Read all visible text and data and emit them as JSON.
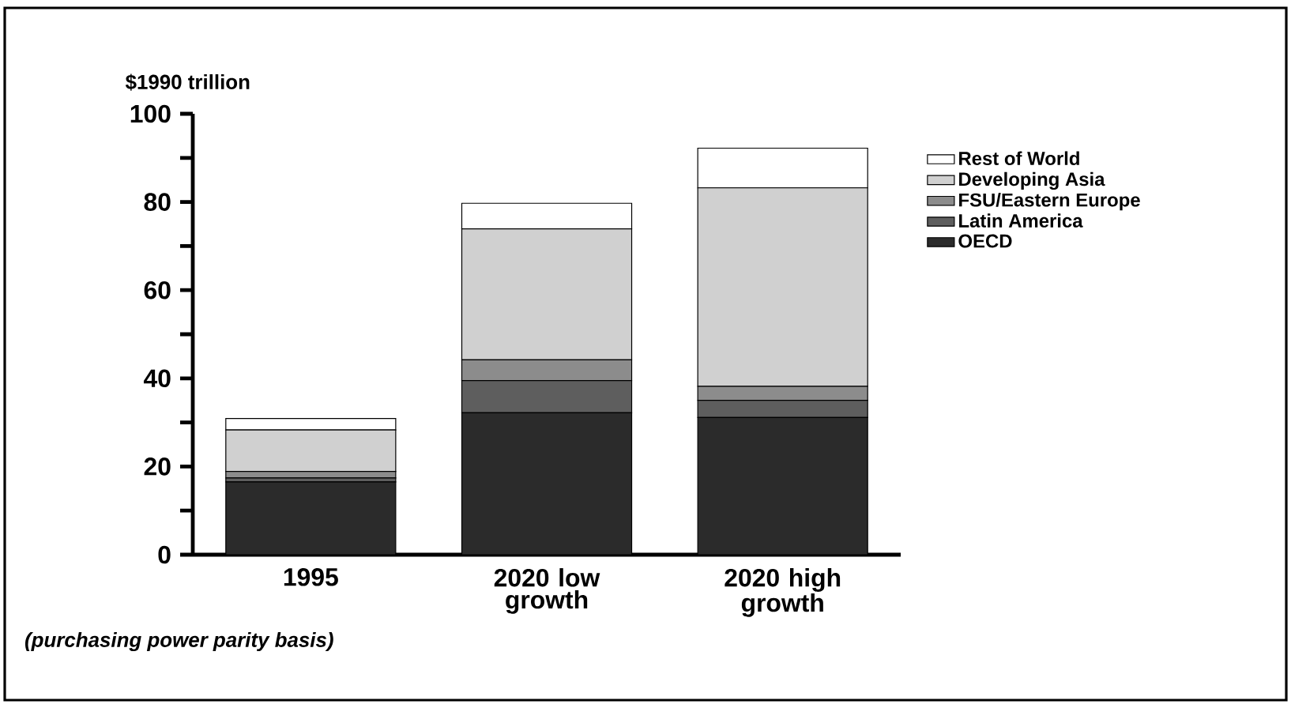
{
  "chart_data": {
    "type": "bar",
    "stacked": true,
    "ylabel": "$1990 trillion",
    "categories": [
      "1995",
      "2020 low growth",
      "2020 high growth"
    ],
    "series": [
      {
        "name": "OECD",
        "color": "#2b2b2b",
        "values": [
          16.5,
          32.2,
          31.1
        ]
      },
      {
        "name": "Latin America",
        "color": "#5e5e5e",
        "values": [
          0.9,
          7.3,
          3.9
        ]
      },
      {
        "name": "FSU/Eastern Europe",
        "color": "#8c8c8c",
        "values": [
          1.5,
          4.7,
          3.2
        ]
      },
      {
        "name": "Developing Asia",
        "color": "#d0d0d0",
        "values": [
          9.4,
          29.7,
          45.0
        ]
      },
      {
        "name": "Rest of World",
        "color": "#ffffff",
        "values": [
          2.6,
          5.8,
          9.0
        ]
      }
    ],
    "ylim": [
      0,
      100
    ],
    "yticks": [
      0,
      {
        "value": 10,
        "label": null
      },
      20,
      {
        "value": 30,
        "label": null
      },
      40,
      {
        "value": 50,
        "label": null
      },
      60,
      {
        "value": 70,
        "label": null
      },
      80,
      {
        "value": 90,
        "label": null
      },
      100
    ],
    "legend": "right",
    "grid": false,
    "annotations": [
      "(purchasing power parity basis)"
    ]
  }
}
